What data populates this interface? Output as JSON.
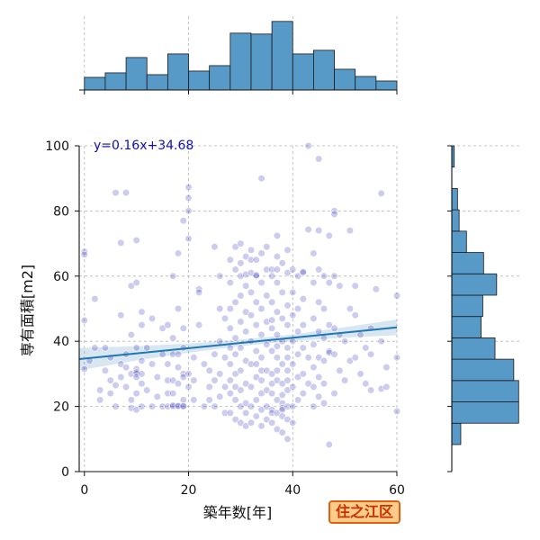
{
  "chart_data": {
    "type": "scatter",
    "title": "",
    "xlabel": "築年数[年]",
    "ylabel": "専有面積[m2]",
    "xlim": [
      -1,
      60
    ],
    "ylim": [
      0,
      100
    ],
    "xticks": [
      0,
      20,
      40,
      60
    ],
    "yticks": [
      0,
      20,
      40,
      60,
      80,
      100
    ],
    "grid": true,
    "regression": {
      "label": "y=0.16x+34.68",
      "slope": 0.16,
      "intercept": 34.68,
      "x_range": [
        -1,
        60
      ]
    },
    "ci_band": {
      "x": [
        -1,
        10,
        20,
        30,
        40,
        50,
        60
      ],
      "lower": [
        31.1,
        34.1,
        36.5,
        38.5,
        40.1,
        41.1,
        41.9
      ],
      "upper": [
        37.9,
        38.5,
        39.3,
        40.5,
        42.1,
        44.3,
        46.7
      ]
    },
    "marginal_x_hist": {
      "bin_start": 0,
      "bin_width": 4,
      "counts": [
        14,
        19,
        36,
        17,
        40,
        21,
        27,
        63,
        62,
        76,
        40,
        44,
        23,
        15,
        10
      ]
    },
    "marginal_y_hist": {
      "bin_start": 8.3,
      "bin_width": 6.55,
      "counts": [
        11,
        82,
        82,
        76,
        53,
        36,
        38,
        55,
        39,
        18,
        9,
        7,
        0,
        3
      ]
    },
    "points": [
      [
        0,
        67.5
      ],
      [
        0,
        66.6
      ],
      [
        0,
        46.4
      ],
      [
        0,
        31.5
      ],
      [
        2,
        53
      ],
      [
        1,
        34
      ],
      [
        3,
        25
      ],
      [
        3,
        22
      ],
      [
        2,
        38
      ],
      [
        4,
        38
      ],
      [
        4,
        31
      ],
      [
        5,
        35
      ],
      [
        5,
        28
      ],
      [
        5,
        24
      ],
      [
        6,
        85.6
      ],
      [
        6,
        26.5
      ],
      [
        6,
        20
      ],
      [
        7,
        70.2
      ],
      [
        7,
        48
      ],
      [
        7,
        29
      ],
      [
        7,
        33
      ],
      [
        8,
        85.6
      ],
      [
        8,
        36
      ],
      [
        8,
        32
      ],
      [
        8,
        26
      ],
      [
        9,
        57
      ],
      [
        9,
        42
      ],
      [
        9,
        30
      ],
      [
        9,
        22
      ],
      [
        9,
        19.5
      ],
      [
        10,
        71
      ],
      [
        10,
        58
      ],
      [
        10,
        38
      ],
      [
        10,
        31.5
      ],
      [
        10,
        30
      ],
      [
        10,
        30.5
      ],
      [
        10,
        29
      ],
      [
        10,
        24
      ],
      [
        10,
        19
      ],
      [
        11,
        49
      ],
      [
        11,
        45
      ],
      [
        11,
        34
      ],
      [
        11,
        30
      ],
      [
        11,
        27
      ],
      [
        11,
        20
      ],
      [
        12,
        38
      ],
      [
        12,
        25
      ],
      [
        13,
        47
      ],
      [
        13,
        33
      ],
      [
        13,
        20
      ],
      [
        14,
        29
      ],
      [
        14,
        23
      ],
      [
        15,
        44
      ],
      [
        15,
        36
      ],
      [
        15,
        20
      ],
      [
        16,
        45
      ],
      [
        16,
        33
      ],
      [
        16,
        28
      ],
      [
        16,
        24
      ],
      [
        16,
        20
      ],
      [
        17,
        60
      ],
      [
        17,
        41
      ],
      [
        17,
        36
      ],
      [
        17,
        28
      ],
      [
        17,
        24
      ],
      [
        17,
        20
      ],
      [
        17,
        20.3
      ],
      [
        18,
        67
      ],
      [
        18,
        50
      ],
      [
        18,
        36
      ],
      [
        18,
        32
      ],
      [
        18,
        27
      ],
      [
        18,
        20
      ],
      [
        18,
        20.2
      ],
      [
        19,
        77
      ],
      [
        19,
        44
      ],
      [
        19,
        38
      ],
      [
        19,
        30
      ],
      [
        19,
        29
      ],
      [
        19,
        22
      ],
      [
        19,
        20
      ],
      [
        19,
        20.1
      ],
      [
        20,
        87.3
      ],
      [
        20,
        84
      ],
      [
        20,
        80
      ],
      [
        20,
        71.5
      ],
      [
        20,
        30
      ],
      [
        20,
        26
      ],
      [
        21,
        28
      ],
      [
        21,
        22
      ],
      [
        21,
        35
      ],
      [
        22,
        56
      ],
      [
        22,
        55
      ],
      [
        22,
        45
      ],
      [
        23,
        33
      ],
      [
        23,
        20
      ],
      [
        24,
        31
      ],
      [
        24,
        26
      ],
      [
        24,
        22
      ],
      [
        25,
        69
      ],
      [
        25,
        36
      ],
      [
        25,
        28
      ],
      [
        25,
        20
      ],
      [
        26,
        60
      ],
      [
        26,
        50
      ],
      [
        26,
        40
      ],
      [
        26,
        30
      ],
      [
        26,
        23
      ],
      [
        27,
        47
      ],
      [
        27,
        35
      ],
      [
        27,
        26
      ],
      [
        27,
        18
      ],
      [
        28,
        65
      ],
      [
        28,
        58
      ],
      [
        28,
        50
      ],
      [
        28,
        44
      ],
      [
        28,
        38
      ],
      [
        28,
        33
      ],
      [
        28,
        28
      ],
      [
        28,
        24
      ],
      [
        28,
        18
      ],
      [
        29,
        69
      ],
      [
        29,
        62
      ],
      [
        29,
        52
      ],
      [
        29,
        41
      ],
      [
        29,
        36
      ],
      [
        29,
        30
      ],
      [
        29,
        26
      ],
      [
        29,
        22
      ],
      [
        29,
        16
      ],
      [
        30,
        70
      ],
      [
        30,
        64
      ],
      [
        30,
        60
      ],
      [
        30,
        54
      ],
      [
        30,
        46
      ],
      [
        30,
        38
      ],
      [
        30,
        31
      ],
      [
        30,
        25
      ],
      [
        30,
        20
      ],
      [
        30,
        15
      ],
      [
        31,
        66
      ],
      [
        31,
        60.5
      ],
      [
        31,
        57
      ],
      [
        31,
        49
      ],
      [
        31,
        43
      ],
      [
        31,
        34
      ],
      [
        31,
        27
      ],
      [
        31,
        21
      ],
      [
        31,
        18
      ],
      [
        31,
        14
      ],
      [
        32,
        68
      ],
      [
        32,
        65
      ],
      [
        32,
        61
      ],
      [
        32,
        55
      ],
      [
        32,
        48
      ],
      [
        32,
        40
      ],
      [
        32,
        33
      ],
      [
        32,
        26
      ],
      [
        32,
        20
      ],
      [
        32,
        15
      ],
      [
        33,
        65
      ],
      [
        33,
        60
      ],
      [
        33,
        60.3
      ],
      [
        33,
        52
      ],
      [
        33,
        45
      ],
      [
        33,
        37
      ],
      [
        33,
        33
      ],
      [
        33,
        29
      ],
      [
        33,
        22
      ],
      [
        33,
        17
      ],
      [
        34,
        90
      ],
      [
        34,
        67
      ],
      [
        34,
        58
      ],
      [
        34,
        50
      ],
      [
        34,
        42
      ],
      [
        34,
        35
      ],
      [
        34,
        31
      ],
      [
        34,
        28
      ],
      [
        34,
        24
      ],
      [
        34,
        19
      ],
      [
        34,
        14
      ],
      [
        35,
        69
      ],
      [
        35,
        62
      ],
      [
        35,
        54
      ],
      [
        35,
        46
      ],
      [
        35,
        39
      ],
      [
        35,
        31
      ],
      [
        35,
        25
      ],
      [
        35,
        20
      ],
      [
        35,
        16
      ],
      [
        36,
        62
      ],
      [
        36,
        60
      ],
      [
        36,
        52
      ],
      [
        36,
        46.5
      ],
      [
        36,
        44
      ],
      [
        36,
        37
      ],
      [
        36,
        30
      ],
      [
        36,
        27
      ],
      [
        36,
        24
      ],
      [
        36,
        19
      ],
      [
        36,
        18
      ],
      [
        36,
        15
      ],
      [
        37,
        72.4
      ],
      [
        37,
        66
      ],
      [
        37,
        62
      ],
      [
        37,
        58
      ],
      [
        37,
        49
      ],
      [
        37,
        42
      ],
      [
        37,
        38.5
      ],
      [
        37,
        35
      ],
      [
        37,
        31
      ],
      [
        37,
        28
      ],
      [
        37,
        22
      ],
      [
        37,
        18
      ],
      [
        37,
        13
      ],
      [
        38,
        64
      ],
      [
        38,
        55
      ],
      [
        38,
        47
      ],
      [
        38,
        40
      ],
      [
        38,
        33
      ],
      [
        38,
        27
      ],
      [
        38,
        23.5
      ],
      [
        38,
        21
      ],
      [
        38,
        19.5
      ],
      [
        38,
        19
      ],
      [
        38,
        17
      ],
      [
        38,
        12
      ],
      [
        39,
        68
      ],
      [
        39,
        61
      ],
      [
        39,
        51
      ],
      [
        39,
        45
      ],
      [
        39,
        38
      ],
      [
        39,
        35
      ],
      [
        39,
        31
      ],
      [
        39,
        28
      ],
      [
        39,
        25
      ],
      [
        39,
        20
      ],
      [
        39,
        16
      ],
      [
        39,
        10
      ],
      [
        40,
        62
      ],
      [
        40,
        55
      ],
      [
        40,
        48
      ],
      [
        40,
        40
      ],
      [
        40,
        33
      ],
      [
        40,
        26
      ],
      [
        40,
        20
      ],
      [
        40,
        15
      ],
      [
        41,
        60
      ],
      [
        41,
        50
      ],
      [
        41,
        43
      ],
      [
        41,
        36
      ],
      [
        41,
        29
      ],
      [
        41,
        22
      ],
      [
        42,
        61
      ],
      [
        42,
        61.3
      ],
      [
        42,
        53
      ],
      [
        42,
        45
      ],
      [
        42,
        38
      ],
      [
        42,
        30
      ],
      [
        42,
        24
      ],
      [
        43,
        100
      ],
      [
        43,
        74.3
      ],
      [
        43,
        35
      ],
      [
        43,
        27
      ],
      [
        44,
        67
      ],
      [
        44,
        58
      ],
      [
        44,
        47
      ],
      [
        44,
        39
      ],
      [
        44,
        32
      ],
      [
        44,
        26
      ],
      [
        44,
        20
      ],
      [
        45,
        96
      ],
      [
        45,
        74
      ],
      [
        45,
        62
      ],
      [
        45,
        52
      ],
      [
        45,
        43
      ],
      [
        45,
        35
      ],
      [
        45,
        29
      ],
      [
        45,
        23
      ],
      [
        46,
        60
      ],
      [
        46,
        50
      ],
      [
        46,
        41
      ],
      [
        46,
        34
      ],
      [
        46,
        27
      ],
      [
        46,
        21
      ],
      [
        47,
        72.4
      ],
      [
        47,
        58
      ],
      [
        47,
        45
      ],
      [
        47,
        37
      ],
      [
        47,
        36.5
      ],
      [
        47,
        8.3
      ],
      [
        48,
        80
      ],
      [
        48,
        79
      ],
      [
        48,
        60
      ],
      [
        48,
        44
      ],
      [
        48,
        36
      ],
      [
        48,
        24
      ],
      [
        49,
        57
      ],
      [
        49,
        42
      ],
      [
        49,
        31
      ],
      [
        50,
        40
      ],
      [
        50,
        28
      ],
      [
        51,
        74
      ],
      [
        51,
        50
      ],
      [
        51,
        34
      ],
      [
        52,
        57
      ],
      [
        52,
        48
      ],
      [
        52,
        35
      ],
      [
        53,
        42
      ],
      [
        53,
        30
      ],
      [
        54,
        38
      ],
      [
        54,
        27
      ],
      [
        55,
        44
      ],
      [
        55,
        36
      ],
      [
        55,
        25
      ],
      [
        56,
        56
      ],
      [
        57,
        85.4
      ],
      [
        57,
        40
      ],
      [
        57,
        25.4
      ],
      [
        58,
        32
      ],
      [
        58,
        26
      ],
      [
        60,
        54
      ],
      [
        60,
        35
      ],
      [
        60,
        18.5
      ]
    ]
  },
  "badge": {
    "label": "住之江区"
  },
  "colors": {
    "hist": "#5799c7",
    "hist_edge": "#1a1a1a",
    "points": "#0000aa",
    "regression": "#1f77b4",
    "equation": "#1010b0",
    "badge_bg": "#ffcb8a",
    "badge_border": "#e0600f",
    "badge_text": "#c83200"
  }
}
